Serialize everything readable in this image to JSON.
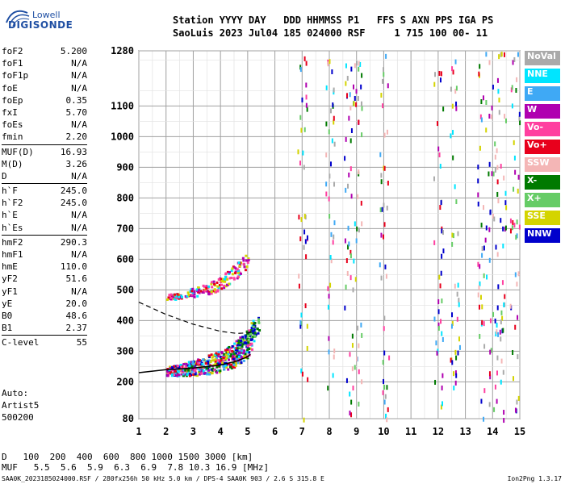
{
  "logo": {
    "line1": "Lowell",
    "line2": "DIGISONDE"
  },
  "header": {
    "labels": "Station YYYY DAY   DDD HHMMSS P1   FFS S AXN PPS IGA PS",
    "values": "SaoLuis 2023 Jul04 185 024000 RSF     1 715 100 00- 11"
  },
  "params": {
    "group1": [
      {
        "name": "foF2",
        "value": "5.200"
      },
      {
        "name": "foF1",
        "value": "N/A"
      },
      {
        "name": "foF1p",
        "value": "N/A"
      },
      {
        "name": "foE",
        "value": "N/A"
      },
      {
        "name": "foEp",
        "value": "0.35"
      },
      {
        "name": "fxI",
        "value": "5.70"
      },
      {
        "name": "foEs",
        "value": "N/A"
      },
      {
        "name": "fmin",
        "value": "2.20"
      }
    ],
    "group2": [
      {
        "name": "MUF(D)",
        "value": "16.93"
      },
      {
        "name": "M(D)",
        "value": "3.26"
      },
      {
        "name": "D",
        "value": "N/A"
      }
    ],
    "group3": [
      {
        "name": "h`F",
        "value": "245.0"
      },
      {
        "name": "h`F2",
        "value": "245.0"
      },
      {
        "name": "h`E",
        "value": "N/A"
      },
      {
        "name": "h`Es",
        "value": "N/A"
      }
    ],
    "group4": [
      {
        "name": "hmF2",
        "value": "290.3"
      },
      {
        "name": "hmF1",
        "value": "N/A"
      },
      {
        "name": "hmE",
        "value": "110.0"
      },
      {
        "name": "yF2",
        "value": "51.6"
      },
      {
        "name": "yF1",
        "value": "N/A"
      },
      {
        "name": "yE",
        "value": "20.0"
      },
      {
        "name": "B0",
        "value": "48.6"
      },
      {
        "name": "B1",
        "value": "2.37"
      }
    ],
    "group5": [
      {
        "name": "C-level",
        "value": "55"
      }
    ]
  },
  "auto": {
    "line1": "Auto:",
    "line2": "Artist5",
    "line3": "500200"
  },
  "legend": [
    {
      "label": "NoVal",
      "color": "#aaaaaa"
    },
    {
      "label": "NNE",
      "color": "#00e5ff"
    },
    {
      "label": "E",
      "color": "#3fa9f5"
    },
    {
      "label": "W",
      "color": "#b000b0"
    },
    {
      "label": "Vo-",
      "color": "#ff3fa0"
    },
    {
      "label": "Vo+",
      "color": "#e8001c"
    },
    {
      "label": "SSW",
      "color": "#f4b6b6"
    },
    {
      "label": "X-",
      "color": "#007a00"
    },
    {
      "label": "X+",
      "color": "#66cc66"
    },
    {
      "label": "SSE",
      "color": "#d4d400"
    },
    {
      "label": "NNW",
      "color": "#0000cc"
    }
  ],
  "chart_data": {
    "type": "scatter",
    "xlim": [
      1,
      15
    ],
    "ylim": [
      80,
      1280
    ],
    "x_ticks": [
      1,
      2,
      3,
      4,
      5,
      6,
      7,
      8,
      9,
      10,
      11,
      12,
      13,
      14,
      15
    ],
    "y_ticks": [
      80,
      200,
      300,
      400,
      500,
      600,
      700,
      800,
      900,
      1000,
      1100,
      1280
    ],
    "grid": true,
    "legend_position": "right",
    "profile_curve": {
      "x": [
        1.0,
        2.0,
        3.0,
        4.0,
        4.6,
        5.0,
        5.1
      ],
      "y": [
        230,
        240,
        245,
        255,
        268,
        282,
        290
      ]
    },
    "ordinary_trace_hint": {
      "x": [
        1.0,
        2.0,
        3.0,
        4.0,
        4.6,
        5.0,
        5.2
      ],
      "y": [
        460,
        420,
        388,
        365,
        358,
        360,
        365
      ]
    },
    "f_trace": {
      "x": [
        2.0,
        2.5,
        3.0,
        3.5,
        4.0,
        4.5,
        5.0,
        5.2
      ],
      "y": [
        238,
        242,
        248,
        258,
        272,
        292,
        330,
        370
      ]
    },
    "second_hop": {
      "x": [
        2.0,
        2.5,
        3.0,
        3.5,
        4.0,
        4.5,
        5.0
      ],
      "y": [
        478,
        485,
        495,
        505,
        525,
        560,
        600
      ]
    },
    "x_trace": {
      "x": [
        4.6,
        4.8,
        5.0,
        5.2,
        5.4
      ],
      "y": [
        320,
        335,
        350,
        370,
        395
      ]
    }
  },
  "dmuf": {
    "d_label": "D",
    "d_values": "100  200  400  600  800 1000 1500 3000 [km]",
    "muf_label": "MUF",
    "muf_values": "5.5  5.6  5.9  6.3  6.9  7.8 10.3 16.9 [MHz]"
  },
  "footer": {
    "left": "SAA0K_2023185024000.RSF / 280fx256h 50 kHz 5.0 km / DPS-4 SAA0K 903 / 2.6 S 315.8 E",
    "right": "Ion2Png 1.3.17"
  }
}
